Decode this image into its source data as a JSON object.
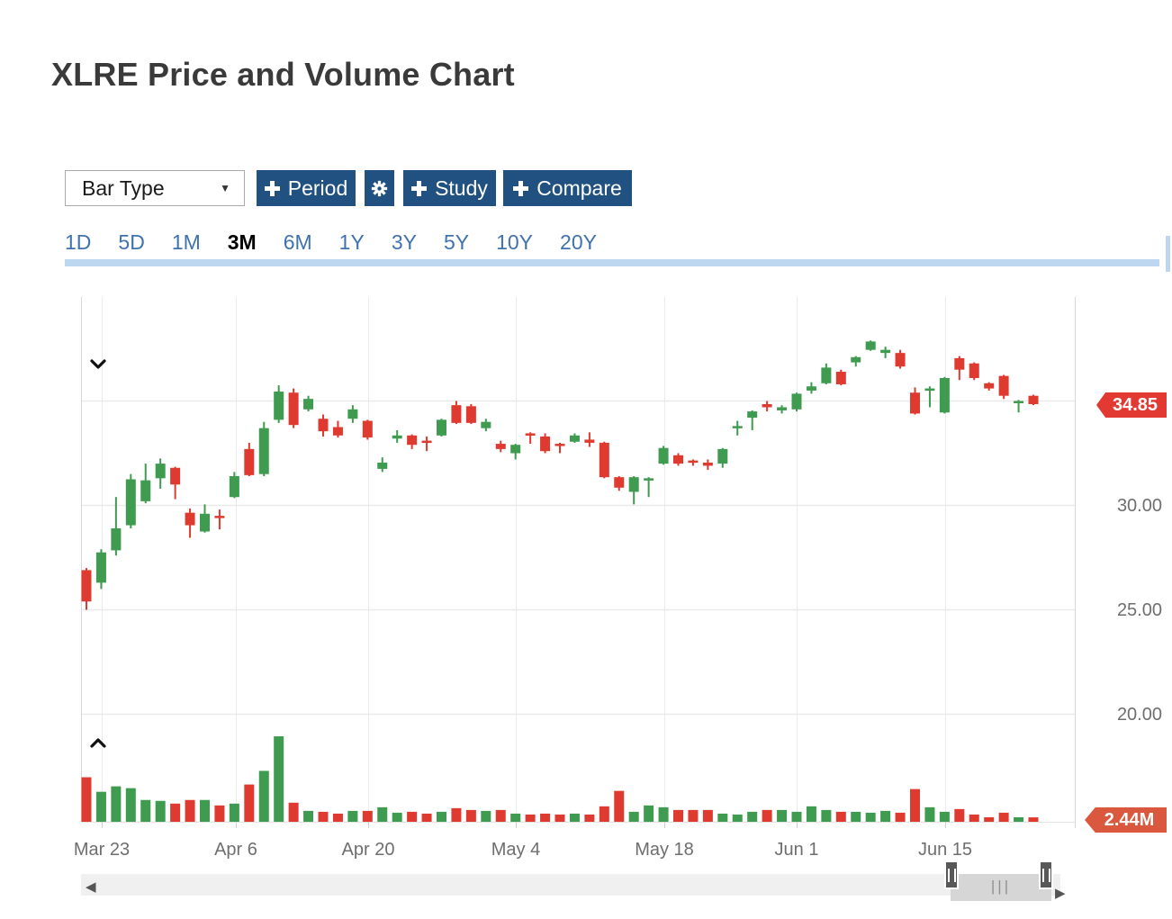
{
  "page": {
    "title": "XLRE Price and Volume Chart"
  },
  "toolbar": {
    "bar_type": {
      "label": "Bar Type"
    },
    "buttons": {
      "period": "Period",
      "study": "Study",
      "compare": "Compare"
    }
  },
  "range_tabs": {
    "items": [
      {
        "label": "1D",
        "active": false
      },
      {
        "label": "5D",
        "active": false
      },
      {
        "label": "1M",
        "active": false
      },
      {
        "label": "3M",
        "active": true
      },
      {
        "label": "6M",
        "active": false
      },
      {
        "label": "1Y",
        "active": false
      },
      {
        "label": "3Y",
        "active": false
      },
      {
        "label": "5Y",
        "active": false
      },
      {
        "label": "10Y",
        "active": false
      },
      {
        "label": "20Y",
        "active": false
      }
    ]
  },
  "icons": {
    "caret_down": "▼",
    "scroll_left": "◀",
    "scroll_right": "▶",
    "thumb_glyph": "|||"
  },
  "chart_data": {
    "type": "candlestick-with-volume",
    "symbol": "XLRE",
    "title": "XLRE Price and Volume Chart",
    "legend_position": "none",
    "grid": true,
    "price_axis": {
      "side": "right",
      "tick_labels": [
        "30.00",
        "25.00",
        "20.00"
      ],
      "tick_values": [
        30,
        25,
        20
      ],
      "gridline_values": [
        35,
        30,
        25,
        20
      ],
      "range": [
        19.0,
        38.6
      ],
      "last_price": 34.85,
      "last_price_label": "34.85"
    },
    "volume_axis": {
      "unit": "millions",
      "last_volume": 2440000,
      "last_volume_label": "2.44M",
      "max_volume_millions": 47
    },
    "x_axis": {
      "tick_labels": [
        "Mar 23",
        "Apr 6",
        "Apr 20",
        "May 4",
        "May 18",
        "Jun 1",
        "Jun 15"
      ]
    },
    "colors": {
      "up": "#3e9b4f",
      "down": "#df3a30",
      "price_badge": "#e23a33",
      "volume_badge": "#d9583e",
      "grid": "#eaeaea",
      "plot_border": "#d8d8d8",
      "axis_text": "#6e6e6e",
      "accent_blue": "#215180",
      "link_blue": "#3f72ae",
      "tab_underline": "#bed7f1"
    },
    "candles": [
      {
        "d": "Mar 20",
        "o": 26.9,
        "h": 27.0,
        "l": 25.0,
        "c": 25.4,
        "v": 24.5
      },
      {
        "d": "Mar 23",
        "o": 26.3,
        "h": 27.9,
        "l": 26.0,
        "c": 27.75,
        "v": 16.5
      },
      {
        "d": "Mar 24",
        "o": 27.85,
        "h": 30.4,
        "l": 27.6,
        "c": 28.9,
        "v": 19.5
      },
      {
        "d": "Mar 25",
        "o": 29.05,
        "h": 31.5,
        "l": 28.9,
        "c": 31.25,
        "v": 18.5
      },
      {
        "d": "Mar 26",
        "o": 30.2,
        "h": 32.0,
        "l": 30.1,
        "c": 31.2,
        "v": 12
      },
      {
        "d": "Mar 27",
        "o": 31.3,
        "h": 32.25,
        "l": 30.8,
        "c": 32.0,
        "v": 11.5
      },
      {
        "d": "Mar 30",
        "o": 31.8,
        "h": 31.85,
        "l": 30.3,
        "c": 31.0,
        "v": 10
      },
      {
        "d": "Mar 31",
        "o": 29.65,
        "h": 29.85,
        "l": 28.45,
        "c": 29.05,
        "v": 12
      },
      {
        "d": "Apr 1",
        "o": 28.75,
        "h": 30.05,
        "l": 28.7,
        "c": 29.6,
        "v": 12
      },
      {
        "d": "Apr 2",
        "o": 29.5,
        "h": 29.8,
        "l": 28.85,
        "c": 29.4,
        "v": 9
      },
      {
        "d": "Apr 6",
        "o": 30.4,
        "h": 31.6,
        "l": 30.35,
        "c": 31.4,
        "v": 10
      },
      {
        "d": "Apr 7",
        "o": 32.7,
        "h": 33.0,
        "l": 31.4,
        "c": 31.45,
        "v": 20.5
      },
      {
        "d": "Apr 8",
        "o": 31.5,
        "h": 34.0,
        "l": 31.4,
        "c": 33.7,
        "v": 28
      },
      {
        "d": "Apr 9",
        "o": 34.1,
        "h": 35.75,
        "l": 33.95,
        "c": 35.45,
        "v": 47
      },
      {
        "d": "Apr 13",
        "o": 35.4,
        "h": 35.6,
        "l": 33.7,
        "c": 33.85,
        "v": 10.5
      },
      {
        "d": "Apr 14",
        "o": 34.6,
        "h": 35.25,
        "l": 34.5,
        "c": 35.1,
        "v": 6
      },
      {
        "d": "Apr 15",
        "o": 34.15,
        "h": 34.35,
        "l": 33.3,
        "c": 33.55,
        "v": 5.5
      },
      {
        "d": "Apr 16",
        "o": 33.75,
        "h": 34.05,
        "l": 33.25,
        "c": 33.35,
        "v": 4.5
      },
      {
        "d": "Apr 17",
        "o": 34.15,
        "h": 34.8,
        "l": 33.95,
        "c": 34.6,
        "v": 6
      },
      {
        "d": "Apr 20",
        "o": 34.05,
        "h": 34.1,
        "l": 33.15,
        "c": 33.25,
        "v": 6
      },
      {
        "d": "Apr 21",
        "o": 31.75,
        "h": 32.3,
        "l": 31.6,
        "c": 32.05,
        "v": 8
      },
      {
        "d": "Apr 22",
        "o": 33.2,
        "h": 33.6,
        "l": 33.0,
        "c": 33.35,
        "v": 5
      },
      {
        "d": "Apr 23",
        "o": 33.35,
        "h": 33.4,
        "l": 32.7,
        "c": 32.9,
        "v": 5.5
      },
      {
        "d": "Apr 24",
        "o": 33.1,
        "h": 33.3,
        "l": 32.6,
        "c": 33.0,
        "v": 4.5
      },
      {
        "d": "Apr 27",
        "o": 33.35,
        "h": 34.15,
        "l": 33.3,
        "c": 34.1,
        "v": 5.5
      },
      {
        "d": "Apr 28",
        "o": 34.8,
        "h": 35.0,
        "l": 33.9,
        "c": 33.95,
        "v": 7.5
      },
      {
        "d": "Apr 29",
        "o": 34.75,
        "h": 34.85,
        "l": 33.9,
        "c": 33.95,
        "v": 6.5
      },
      {
        "d": "Apr 30",
        "o": 33.7,
        "h": 34.15,
        "l": 33.55,
        "c": 34.0,
        "v": 6
      },
      {
        "d": "May 1",
        "o": 32.95,
        "h": 33.1,
        "l": 32.55,
        "c": 32.7,
        "v": 6.5
      },
      {
        "d": "May 4",
        "o": 32.5,
        "h": 32.95,
        "l": 32.2,
        "c": 32.9,
        "v": 4.5
      },
      {
        "d": "May 5",
        "o": 33.45,
        "h": 33.5,
        "l": 32.95,
        "c": 33.35,
        "v": 4
      },
      {
        "d": "May 6",
        "o": 33.3,
        "h": 33.45,
        "l": 32.5,
        "c": 32.6,
        "v": 4.5
      },
      {
        "d": "May 7",
        "o": 32.95,
        "h": 33.0,
        "l": 32.5,
        "c": 32.85,
        "v": 4
      },
      {
        "d": "May 8",
        "o": 33.05,
        "h": 33.45,
        "l": 33.0,
        "c": 33.35,
        "v": 4.5
      },
      {
        "d": "May 11",
        "o": 33.15,
        "h": 33.5,
        "l": 32.8,
        "c": 33.0,
        "v": 4
      },
      {
        "d": "May 12",
        "o": 33.0,
        "h": 33.05,
        "l": 31.3,
        "c": 31.35,
        "v": 8.5
      },
      {
        "d": "May 13",
        "o": 31.35,
        "h": 31.4,
        "l": 30.7,
        "c": 30.85,
        "v": 17
      },
      {
        "d": "May 14",
        "o": 30.65,
        "h": 31.4,
        "l": 30.05,
        "c": 31.35,
        "v": 5.5
      },
      {
        "d": "May 15",
        "o": 31.2,
        "h": 31.35,
        "l": 30.4,
        "c": 31.3,
        "v": 9
      },
      {
        "d": "May 18",
        "o": 32.0,
        "h": 32.85,
        "l": 31.95,
        "c": 32.75,
        "v": 8
      },
      {
        "d": "May 19",
        "o": 32.4,
        "h": 32.5,
        "l": 31.9,
        "c": 32.0,
        "v": 6.5
      },
      {
        "d": "May 20",
        "o": 32.15,
        "h": 32.2,
        "l": 31.9,
        "c": 32.05,
        "v": 6.5
      },
      {
        "d": "May 21",
        "o": 32.05,
        "h": 32.2,
        "l": 31.7,
        "c": 31.9,
        "v": 6.5
      },
      {
        "d": "May 22",
        "o": 32.0,
        "h": 32.75,
        "l": 31.8,
        "c": 32.7,
        "v": 4.5
      },
      {
        "d": "May 26",
        "o": 33.7,
        "h": 34.05,
        "l": 33.35,
        "c": 33.8,
        "v": 4
      },
      {
        "d": "May 27",
        "o": 34.2,
        "h": 34.55,
        "l": 33.6,
        "c": 34.5,
        "v": 5.5
      },
      {
        "d": "May 28",
        "o": 34.85,
        "h": 35.0,
        "l": 34.5,
        "c": 34.7,
        "v": 6.5
      },
      {
        "d": "May 29",
        "o": 34.55,
        "h": 34.8,
        "l": 34.4,
        "c": 34.7,
        "v": 6.5
      },
      {
        "d": "Jun 1",
        "o": 34.6,
        "h": 35.4,
        "l": 34.5,
        "c": 35.35,
        "v": 5.5
      },
      {
        "d": "Jun 2",
        "o": 35.5,
        "h": 35.9,
        "l": 35.35,
        "c": 35.7,
        "v": 8.5
      },
      {
        "d": "Jun 3",
        "o": 35.85,
        "h": 36.8,
        "l": 35.8,
        "c": 36.6,
        "v": 6.5
      },
      {
        "d": "Jun 4",
        "o": 36.4,
        "h": 36.5,
        "l": 35.75,
        "c": 35.8,
        "v": 5.5
      },
      {
        "d": "Jun 5",
        "o": 36.85,
        "h": 37.15,
        "l": 36.65,
        "c": 37.1,
        "v": 5.5
      },
      {
        "d": "Jun 8",
        "o": 37.45,
        "h": 37.9,
        "l": 37.4,
        "c": 37.85,
        "v": 5
      },
      {
        "d": "Jun 9",
        "o": 37.3,
        "h": 37.6,
        "l": 37.05,
        "c": 37.45,
        "v": 6
      },
      {
        "d": "Jun 10",
        "o": 37.3,
        "h": 37.45,
        "l": 36.55,
        "c": 36.65,
        "v": 5
      },
      {
        "d": "Jun 11",
        "o": 35.4,
        "h": 35.65,
        "l": 34.35,
        "c": 34.4,
        "v": 18
      },
      {
        "d": "Jun 12",
        "o": 35.5,
        "h": 35.7,
        "l": 34.7,
        "c": 35.6,
        "v": 8
      },
      {
        "d": "Jun 15",
        "o": 34.45,
        "h": 36.15,
        "l": 34.4,
        "c": 36.1,
        "v": 5.5
      },
      {
        "d": "Jun 16",
        "o": 37.05,
        "h": 37.15,
        "l": 36.0,
        "c": 36.5,
        "v": 7
      },
      {
        "d": "Jun 17",
        "o": 36.8,
        "h": 36.85,
        "l": 36.0,
        "c": 36.1,
        "v": 4
      },
      {
        "d": "Jun 18",
        "o": 35.85,
        "h": 35.9,
        "l": 35.5,
        "c": 35.6,
        "v": 2.5
      },
      {
        "d": "Jun 19",
        "o": 36.2,
        "h": 36.25,
        "l": 35.1,
        "c": 35.25,
        "v": 5
      },
      {
        "d": "Jun 22",
        "o": 34.9,
        "h": 35.05,
        "l": 34.45,
        "c": 35.0,
        "v": 2.5
      },
      {
        "d": "Jun 23",
        "o": 35.25,
        "h": 35.3,
        "l": 34.8,
        "c": 34.85,
        "v": 2.44
      }
    ]
  }
}
